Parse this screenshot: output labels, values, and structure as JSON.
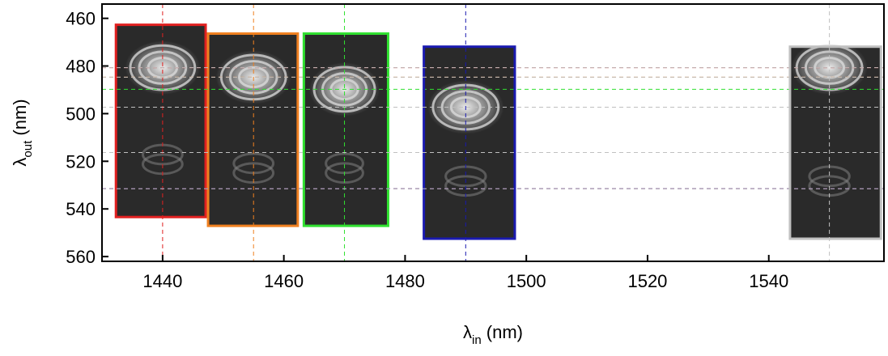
{
  "chart_data": {
    "type": "image-panels",
    "x_label": {
      "symbol": "λ",
      "subscript": "in",
      "unit": "(nm)"
    },
    "y_label": {
      "symbol": "λ",
      "subscript": "out",
      "unit": "(nm)"
    },
    "xlim": [
      1430,
      1559
    ],
    "ylim": [
      454,
      562
    ],
    "y_reversed": true,
    "xticks": [
      1440,
      1460,
      1480,
      1500,
      1520,
      1540
    ],
    "yticks": [
      460,
      480,
      500,
      520,
      540,
      560
    ],
    "panels": [
      {
        "color": "#e02020",
        "x": [
          1432.3,
          1447.1
        ],
        "y": [
          462.7,
          543.4
        ],
        "v_line": 1440,
        "h_lines": [
          480.7,
          516.3,
          531.5
        ]
      },
      {
        "color": "#f08020",
        "x": [
          1447.5,
          1462.3
        ],
        "y": [
          466.4,
          547.1
        ],
        "v_line": 1455,
        "h_lines": [
          484.7
        ]
      },
      {
        "color": "#30e030",
        "x": [
          1463.3,
          1477.2
        ],
        "y": [
          466.4,
          547.1
        ],
        "v_line": 1470,
        "h_lines": [
          489.8
        ]
      },
      {
        "color": "#1a1ab0",
        "x": [
          1483.1,
          1498.1
        ],
        "y": [
          471.9,
          552.5
        ],
        "v_line": 1490,
        "h_lines": [
          497.3,
          516.3,
          531.5
        ]
      },
      {
        "color": "#c0c0c0",
        "x": [
          1543.5,
          1558.5
        ],
        "y": [
          471.9,
          552.5
        ],
        "v_line": 1550,
        "h_lines": [
          480.7,
          484.7,
          497.3,
          516.3,
          531.5
        ]
      }
    ]
  }
}
